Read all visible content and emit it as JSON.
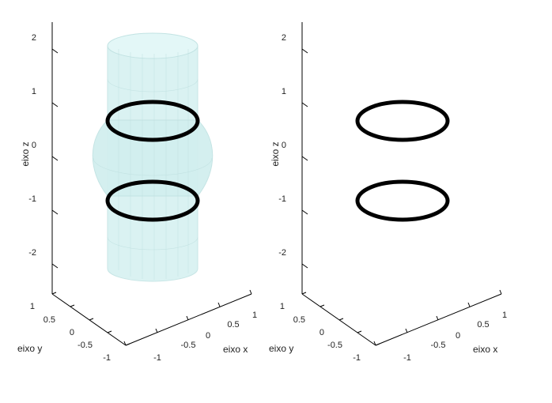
{
  "chart_data": [
    {
      "type": "3d-surface",
      "xlabel": "eixo x",
      "ylabel": "eixo y",
      "zlabel": "eixo z",
      "xticks": [
        "-1",
        "-0.5",
        "0",
        "0.5",
        "1"
      ],
      "yticks": [
        "-1",
        "-0.5",
        "0",
        "0.5",
        "1"
      ],
      "zticks": [
        "-2",
        "-1",
        "0",
        "1",
        "2"
      ],
      "xlim": [
        -1,
        1
      ],
      "ylim": [
        -1,
        1
      ],
      "zlim": [
        -2.5,
        2.5
      ],
      "surfaces": [
        {
          "shape": "cylinder",
          "radius": 0.5,
          "z_range": [
            -2.5,
            2.5
          ],
          "color": "#cfeeee"
        },
        {
          "shape": "sphere",
          "radius": 1,
          "center": [
            0,
            0,
            0
          ],
          "color": "#cfeeee"
        }
      ],
      "curves": [
        {
          "shape": "circle",
          "radius": 0.5,
          "z": 0.866,
          "color": "#000000"
        },
        {
          "shape": "circle",
          "radius": 0.5,
          "z": -0.866,
          "color": "#000000"
        }
      ]
    },
    {
      "type": "3d-line",
      "xlabel": "eixo x",
      "ylabel": "",
      "zlabel": "eixo z",
      "ylabel_printed": "eixo y",
      "xticks": [
        "-1",
        "-0.5",
        "0",
        "0.5",
        "1"
      ],
      "yticks": [
        "-1",
        "-0.5",
        "0",
        "0.5",
        "1"
      ],
      "zticks": [
        "-2",
        "-1",
        "0",
        "1",
        "2"
      ],
      "xlim": [
        -1,
        1
      ],
      "ylim": [
        -1,
        1
      ],
      "zlim": [
        -2.5,
        2.5
      ],
      "curves": [
        {
          "shape": "circle",
          "radius": 0.5,
          "z": 0.866,
          "color": "#000000"
        },
        {
          "shape": "circle",
          "radius": 0.5,
          "z": -0.866,
          "color": "#000000"
        }
      ]
    }
  ]
}
